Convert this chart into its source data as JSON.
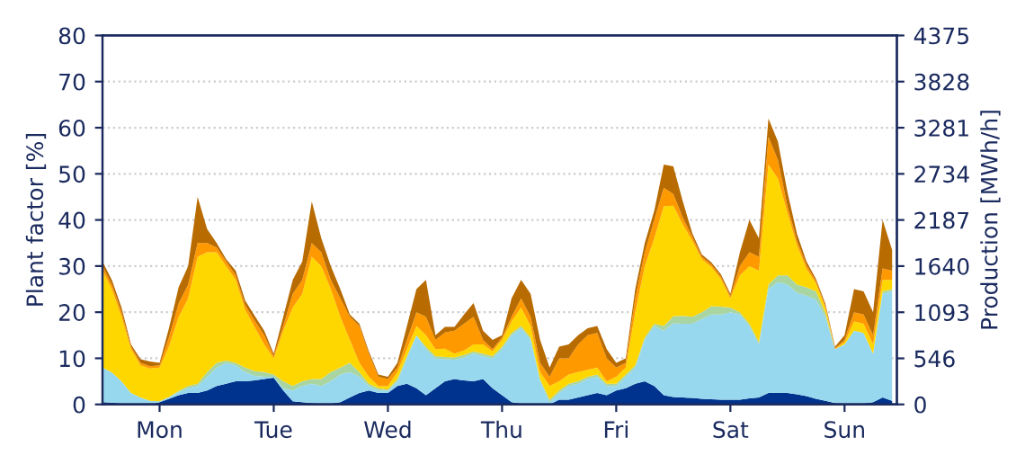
{
  "chart_data": {
    "type": "area",
    "stacked": true,
    "ylabel": "Plant factor [%]",
    "y2label": "Production [MWh/h]",
    "categories": [
      null,
      null,
      null,
      null,
      null,
      null,
      "Mon",
      null,
      null,
      null,
      null,
      null,
      null,
      null,
      null,
      null,
      null,
      null,
      "Tue",
      null,
      null,
      null,
      null,
      null,
      null,
      null,
      null,
      null,
      null,
      null,
      "Wed",
      null,
      null,
      null,
      null,
      null,
      null,
      null,
      null,
      null,
      null,
      null,
      "Thu",
      null,
      null,
      null,
      null,
      null,
      null,
      null,
      null,
      null,
      null,
      null,
      "Fri",
      null,
      null,
      null,
      null,
      null,
      null,
      null,
      null,
      null,
      null,
      null,
      "Sat",
      null,
      null,
      null,
      null,
      null,
      null,
      null,
      null,
      null,
      null,
      null,
      "Sun",
      null,
      null,
      null,
      null,
      null
    ],
    "series": [
      {
        "color": "#00338d",
        "values": [
          0.5,
          0.4,
          0.2,
          0,
          0,
          0,
          0.5,
          1.2,
          2,
          2.5,
          2.5,
          3,
          4,
          4.5,
          5,
          5,
          5.2,
          5.5,
          5.8,
          3,
          0.7,
          0.5,
          0.3,
          0.2,
          0.2,
          0.5,
          1.5,
          2.5,
          3,
          2.5,
          2.5,
          4,
          4.5,
          3.5,
          2,
          3.5,
          5,
          5.5,
          5.2,
          5,
          5.5,
          3.5,
          2,
          0.5,
          0.2,
          0,
          0,
          0,
          1,
          1,
          1.5,
          2,
          2.5,
          2,
          3,
          3.5,
          4.5,
          5,
          4,
          2,
          1.6,
          1.5,
          1.4,
          1.2,
          1.1,
          1,
          1,
          1,
          1.3,
          1.5,
          2.5,
          2.5,
          2.5,
          2.2,
          1.8,
          1.2,
          0.8,
          0.3,
          0.2,
          0.2,
          0.2,
          0.5,
          1.5,
          0.8
        ]
      },
      {
        "color": "#98d8ee",
        "values": [
          7.5,
          6.5,
          4.8,
          2.5,
          1.5,
          0.8,
          0.2,
          0.4,
          0.7,
          1,
          1.5,
          3,
          4,
          4.5,
          3.5,
          2,
          1,
          0.5,
          0.2,
          0.5,
          2.3,
          3.5,
          4.2,
          3.8,
          4.8,
          6,
          5.5,
          3.5,
          1,
          0.5,
          0.5,
          1,
          5.5,
          11.5,
          10,
          6.5,
          4.8,
          4.2,
          5,
          6,
          5,
          6.5,
          10,
          14.5,
          16.3,
          14,
          5,
          0.5,
          1.5,
          3,
          3,
          3.5,
          3.5,
          2,
          1,
          2.5,
          3.5,
          9,
          13,
          14,
          16,
          16,
          16.1,
          17.3,
          18.4,
          18.5,
          19,
          18.5,
          15.7,
          11.5,
          22.5,
          24,
          23.5,
          22,
          21.8,
          21.5,
          18,
          11.7,
          12.8,
          15.8,
          15.3,
          10.5,
          22.5,
          23.7
        ]
      },
      {
        "color": "#a8d5a2",
        "values": [
          0,
          0,
          0,
          0,
          0,
          0,
          0,
          0,
          0.2,
          0.5,
          0.5,
          1,
          1,
          0.5,
          0.5,
          1,
          1,
          1,
          0.5,
          1.5,
          1,
          1,
          1,
          1.5,
          2,
          1.5,
          2,
          1,
          0.5,
          0.5,
          0.2,
          0.5,
          0.5,
          0,
          0.5,
          0.5,
          0.5,
          0.5,
          0.5,
          0.5,
          0.5,
          0.5,
          0.5,
          0.5,
          0.5,
          0.5,
          0.5,
          0.5,
          0.5,
          0.5,
          0.5,
          0.5,
          0.5,
          0.5,
          0.5,
          0.5,
          0.5,
          0.5,
          0.5,
          1,
          1.5,
          1.7,
          1.5,
          1.5,
          1.8,
          1.7,
          1,
          0.5,
          0.5,
          0.5,
          1,
          1.5,
          2,
          1.8,
          1.8,
          1.8,
          1,
          0,
          0,
          0,
          0,
          0,
          0.5,
          0.5
        ]
      },
      {
        "color": "#ffd700",
        "values": [
          21,
          18,
          14,
          9.5,
          7,
          7,
          7.3,
          11,
          16,
          19,
          27.5,
          26,
          24,
          20.5,
          18,
          12.5,
          9.5,
          6,
          3.5,
          11,
          17,
          19,
          26.5,
          24.5,
          18,
          11,
          5,
          2,
          1.5,
          0.5,
          0.8,
          1.5,
          1.5,
          2,
          2.5,
          1.5,
          1.8,
          0.8,
          1,
          1.5,
          2,
          1,
          1.5,
          2.5,
          4,
          2.5,
          1.5,
          3,
          2,
          2,
          2,
          1.5,
          1.5,
          0.5,
          1.5,
          1.5,
          11.5,
          15.5,
          18.5,
          26,
          24,
          19.8,
          16.5,
          11.5,
          8.5,
          6,
          2,
          8,
          12.5,
          15.5,
          26,
          21,
          13.5,
          8.5,
          4,
          1.7,
          1,
          0,
          0.5,
          2,
          2,
          2,
          2.5,
          2
        ]
      },
      {
        "color": "#ff9900",
        "values": [
          1,
          1,
          1,
          0.5,
          0.5,
          0.5,
          0.5,
          2,
          3,
          3,
          3,
          2,
          1,
          1,
          1,
          1,
          1.5,
          2,
          0.5,
          1,
          3,
          3,
          3,
          3,
          2,
          4,
          5,
          8,
          5,
          2,
          1.5,
          1,
          2,
          3,
          4,
          2,
          3.5,
          5,
          5.8,
          6,
          1,
          0.5,
          0.5,
          1,
          2,
          2,
          2,
          2,
          5,
          3.5,
          6,
          7.5,
          7.5,
          5,
          2,
          1,
          3,
          3,
          4,
          4,
          2.5,
          1.5,
          0.8,
          0.5,
          0.5,
          0.5,
          0.5,
          2,
          3,
          3,
          6,
          4,
          1.5,
          1,
          0.8,
          0.5,
          0.5,
          0.2,
          0.5,
          2,
          2,
          2,
          2.5,
          2
        ]
      },
      {
        "color": "#b86b00",
        "values": [
          1,
          1,
          1,
          0.5,
          0.8,
          1,
          0.5,
          2,
          3.5,
          4,
          10,
          3,
          1,
          0.5,
          1,
          1,
          1,
          1,
          0.5,
          2,
          3,
          4,
          9,
          3,
          3,
          2,
          0.5,
          0.5,
          0.5,
          0.5,
          0.5,
          1,
          3,
          5,
          8,
          1,
          1.2,
          0.8,
          2,
          3,
          2,
          2,
          0.5,
          4,
          4,
          5,
          5,
          2,
          2.5,
          3,
          2,
          1.5,
          1.5,
          2,
          1,
          1,
          2,
          2,
          2,
          5,
          6,
          3.5,
          0.8,
          0.5,
          0.5,
          0.5,
          0.5,
          3,
          7,
          4,
          4,
          4,
          3,
          1.5,
          0.8,
          0.5,
          0.5,
          0.3,
          1,
          5,
          5,
          5,
          10.5,
          4.5
        ]
      }
    ],
    "ylim": [
      0,
      80
    ],
    "yticks": [
      0,
      10,
      20,
      30,
      40,
      50,
      60,
      70,
      80
    ],
    "y2lim": [
      0,
      4375
    ],
    "y2ticks": [
      0,
      546,
      1093,
      1640,
      2187,
      2734,
      3281,
      3828,
      4375
    ],
    "grid": true
  }
}
